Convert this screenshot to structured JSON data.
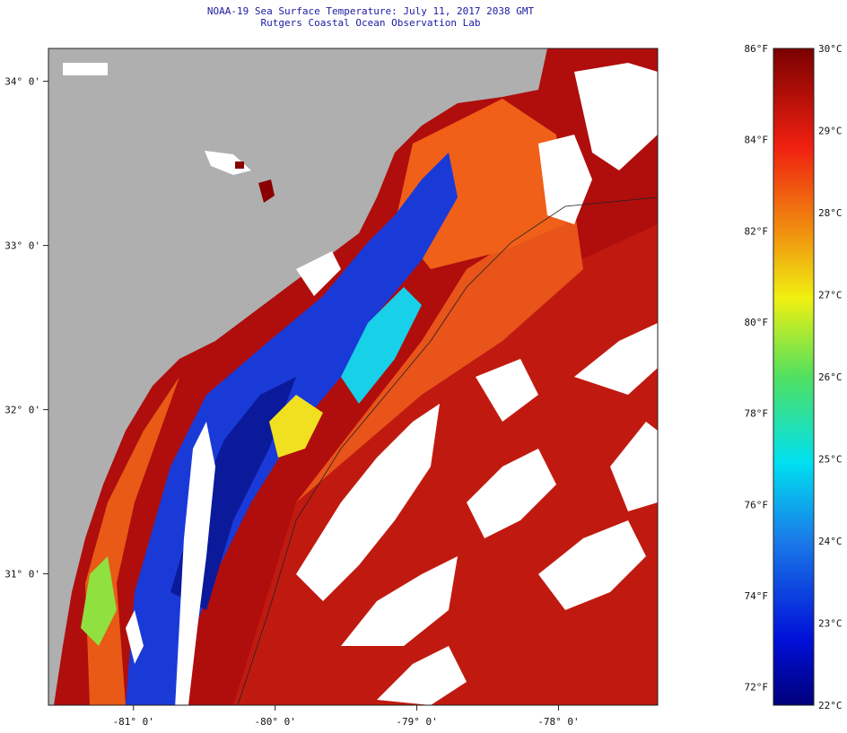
{
  "title": {
    "line1": "NOAA-19 Sea Surface Temperature:  July 11, 2017 2038 GMT",
    "line2": "Rutgers Coastal Ocean Observation Lab"
  },
  "axes": {
    "longitude_ticks": [
      {
        "value": -81,
        "label": "-81° 0'"
      },
      {
        "value": -80,
        "label": "-80° 0'"
      },
      {
        "value": -79,
        "label": "-79° 0'"
      },
      {
        "value": -78,
        "label": "-78° 0'"
      }
    ],
    "latitude_ticks": [
      {
        "value": 34,
        "label": "34° 0'"
      },
      {
        "value": 33,
        "label": "33° 0'"
      },
      {
        "value": 32,
        "label": "32° 0'"
      },
      {
        "value": 31,
        "label": "31° 0'"
      }
    ],
    "lon_range": [
      -81.6,
      -77.3
    ],
    "lat_range": [
      30.2,
      34.2
    ]
  },
  "colorbar": {
    "range_c": [
      22,
      30
    ],
    "range_f": [
      72,
      86
    ],
    "celsius_labels": [
      "30°C",
      "29°C",
      "28°C",
      "27°C",
      "26°C",
      "25°C",
      "24°C",
      "23°C",
      "22°C"
    ],
    "fahrenheit_labels": [
      "86°F",
      "84°F",
      "82°F",
      "80°F",
      "78°F",
      "76°F",
      "74°F",
      "72°F"
    ]
  },
  "colors": {
    "land": "#afafaf",
    "cloud": "#ffffff",
    "warm": "#b00d0d",
    "hot": "#d62a0c",
    "orange": "#f07a10",
    "yellow": "#f0e020",
    "cyan": "#18d0e8",
    "blue": "#1a3ad8",
    "cold": "#0a1a9a",
    "title_text": "#1a1aa0"
  }
}
